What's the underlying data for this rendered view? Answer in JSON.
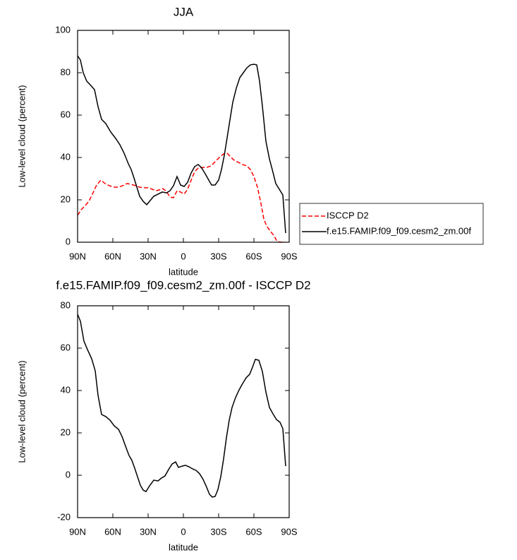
{
  "chart_data": [
    {
      "type": "line",
      "title": "JJA",
      "xlabel": "latitude",
      "ylabel": "Low-level cloud (percent)",
      "xlim": [
        90,
        -90
      ],
      "xticks": [
        {
          "value": 90,
          "label": "90N"
        },
        {
          "value": 60,
          "label": "60N"
        },
        {
          "value": 30,
          "label": "30N"
        },
        0,
        {
          "value": -30,
          "label": "30S"
        },
        {
          "value": -60,
          "label": "60S"
        },
        {
          "value": -90,
          "label": "90S"
        }
      ],
      "ylim": [
        0,
        100
      ],
      "yticks": [
        0,
        20,
        40,
        60,
        80,
        100
      ],
      "legend": "outside-right",
      "series": [
        {
          "name": "ISCCP D2",
          "color": "#ff0000",
          "dash": true,
          "x": [
            90,
            87,
            84,
            80.4,
            77.4,
            73.8,
            70.2,
            66.6,
            63,
            59.4,
            55.2,
            51.6,
            48,
            44.4,
            40.8,
            37.2,
            33.6,
            30,
            26.4,
            23.4,
            20.4,
            17.4,
            14.4,
            11.4,
            8.4,
            5.4,
            2.4,
            -0.6,
            -3.6,
            -6.6,
            -9.6,
            -12.6,
            -16.2,
            -19.8,
            -23.4,
            -27,
            -30.6,
            -34.2,
            -37.2,
            -40.2,
            -43.2,
            -46.8,
            -50.4,
            -54,
            -57,
            -60,
            -63,
            -66,
            -68.4,
            -70.8,
            -73.8,
            -76.8,
            -79.8,
            -82.8,
            -86.4
          ],
          "values": [
            12.7,
            15.3,
            17,
            19.3,
            22.7,
            27,
            29.3,
            27.7,
            26.7,
            26,
            26,
            26.7,
            27.7,
            27.3,
            26.7,
            26,
            25.7,
            25.7,
            25,
            24.3,
            24.7,
            25.3,
            24,
            21.3,
            21,
            24.3,
            23.7,
            22.7,
            25,
            29.3,
            33.3,
            35,
            35.3,
            35.3,
            36,
            38,
            40,
            41.7,
            42,
            40.3,
            38.7,
            37.7,
            36.7,
            36,
            34.3,
            31,
            26,
            18.3,
            11,
            7.7,
            5.3,
            3.3,
            0.3,
            0,
            0
          ]
        },
        {
          "name": "f.e15.FAMIP.f09_f09.cesm2_zm.00f",
          "color": "#000000",
          "dash": false,
          "x": [
            90,
            87.6,
            85.2,
            82.2,
            79.2,
            75.6,
            72.6,
            69.6,
            66,
            61.8,
            57.6,
            54,
            50.4,
            46.8,
            44.4,
            42,
            39.6,
            37.2,
            34.2,
            31.2,
            28.2,
            25.2,
            21.6,
            18,
            14.4,
            11.4,
            8.4,
            5.4,
            2.4,
            -0.6,
            -3.6,
            -6.6,
            -9.6,
            -12.6,
            -15.6,
            -18.6,
            -21.6,
            -24,
            -27,
            -30,
            -32.4,
            -34.8,
            -37.2,
            -39.6,
            -42,
            -45,
            -48,
            -51,
            -54,
            -57,
            -60,
            -62.4,
            -64.8,
            -67.2,
            -70.2,
            -73.2,
            -75.6,
            -78.6,
            -81.6,
            -84.6,
            -87
          ],
          "values": [
            88,
            86,
            80,
            76,
            74.3,
            72,
            64,
            58,
            56,
            52,
            49,
            46,
            42,
            37,
            34.3,
            30.3,
            26,
            21.7,
            19.3,
            17.7,
            19.7,
            21.7,
            22.7,
            23.7,
            23.3,
            24.3,
            26.7,
            31,
            27,
            26.3,
            28.3,
            32.7,
            35.7,
            36.7,
            35,
            32.3,
            29.3,
            27,
            27,
            29.3,
            34.3,
            41,
            49.3,
            57.7,
            66,
            72.7,
            77.7,
            80,
            82.3,
            83.7,
            84,
            83.7,
            76,
            64.3,
            47.7,
            39.3,
            34.3,
            27.7,
            25,
            22.3,
            4.3
          ]
        }
      ]
    },
    {
      "type": "line",
      "title": "f.e15.FAMIP.f09_f09.cesm2_zm.00f - ISCCP D2",
      "xlabel": "latitude",
      "ylabel": "Low-level cloud (percent)",
      "xlim": [
        90,
        -90
      ],
      "xticks": [
        {
          "value": 90,
          "label": "90N"
        },
        {
          "value": 60,
          "label": "60N"
        },
        {
          "value": 30,
          "label": "30N"
        },
        0,
        {
          "value": -30,
          "label": "30S"
        },
        {
          "value": -60,
          "label": "60S"
        },
        {
          "value": -90,
          "label": "90S"
        }
      ],
      "ylim": [
        -20,
        80
      ],
      "yticks": [
        -20,
        0,
        20,
        40,
        60,
        80
      ],
      "series": [
        {
          "color": "#000000",
          "dash": false,
          "x": [
            90,
            87.6,
            84.6,
            81.6,
            78,
            75,
            72.6,
            69.6,
            66,
            62.4,
            58.8,
            55.2,
            52.2,
            49.2,
            46.2,
            43.8,
            41.4,
            39,
            36.6,
            34.2,
            31.8,
            28.8,
            25.2,
            21.6,
            18.6,
            15.6,
            12.6,
            9.6,
            6.6,
            4.2,
            1.2,
            -1.8,
            -4.8,
            -7.8,
            -10.8,
            -13.8,
            -16.8,
            -19.8,
            -22.2,
            -24.6,
            -27,
            -29.4,
            -31.8,
            -34.2,
            -36.6,
            -39,
            -41.4,
            -44.4,
            -47.4,
            -50.4,
            -53.4,
            -56.4,
            -58.8,
            -61.2,
            -64.2,
            -67.2,
            -70.2,
            -73.2,
            -76.2,
            -79.2,
            -82.2,
            -84.6,
            -87
          ],
          "values": [
            76,
            72.7,
            63.3,
            59.3,
            55,
            49.3,
            37.7,
            28.7,
            27.7,
            26,
            23.3,
            21.7,
            18.3,
            13.7,
            9.3,
            7,
            3.3,
            -0.7,
            -4.7,
            -7,
            -7.7,
            -5,
            -2.3,
            -2.7,
            -1.3,
            -0.3,
            2.7,
            5.3,
            6.3,
            3.7,
            4.3,
            4.7,
            4,
            3,
            2.3,
            0.7,
            -2,
            -5.7,
            -9,
            -10.3,
            -10,
            -6.7,
            -0.7,
            7.7,
            17.7,
            26,
            32,
            36.7,
            40.3,
            43.3,
            46,
            47.7,
            51,
            54.7,
            54.3,
            49,
            39.3,
            32,
            29,
            26.3,
            25,
            22,
            4.3
          ]
        }
      ]
    }
  ]
}
